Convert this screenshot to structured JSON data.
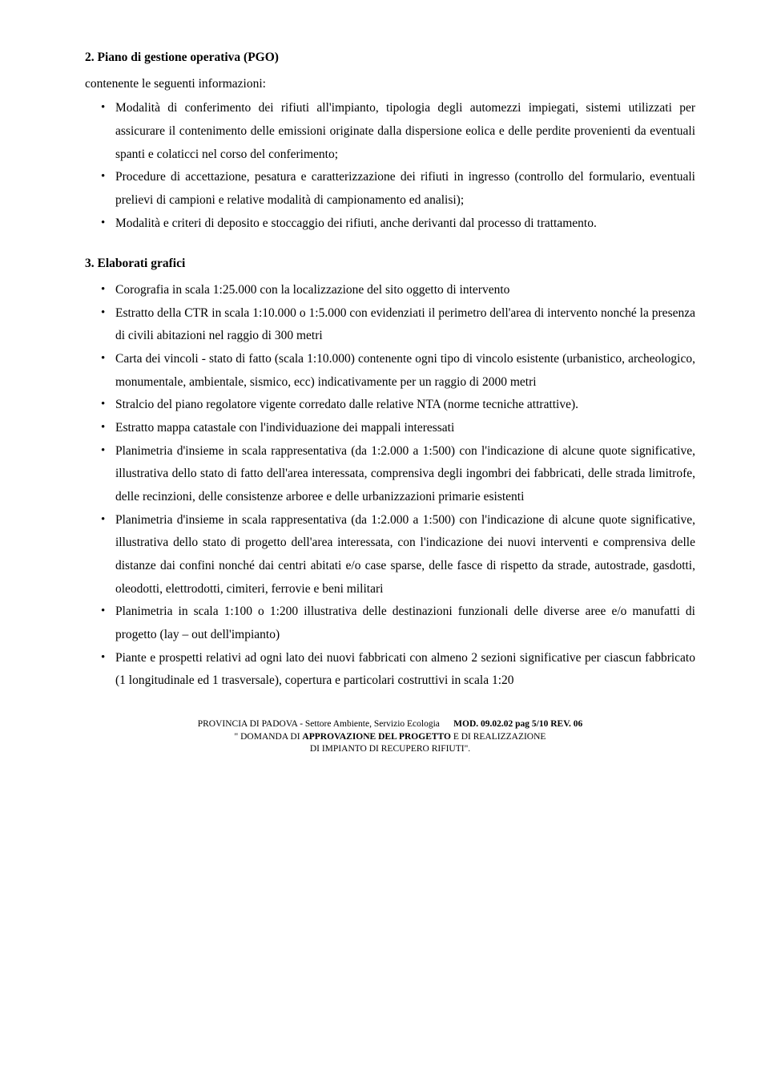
{
  "section2": {
    "title": "2. Piano di gestione operativa (PGO)",
    "intro": "contenente le seguenti informazioni:",
    "items": [
      "Modalità di conferimento dei rifiuti all'impianto, tipologia degli automezzi impiegati, sistemi utilizzati per assicurare il contenimento delle emissioni originate dalla dispersione eolica e delle perdite provenienti da eventuali spanti e colaticci nel corso del conferimento;",
      "Procedure di accettazione, pesatura e caratterizzazione dei rifiuti in ingresso (controllo del formulario, eventuali prelievi di campioni e relative modalità di campionamento ed analisi);",
      "Modalità e criteri di deposito e stoccaggio dei rifiuti, anche derivanti dal processo di trattamento."
    ]
  },
  "section3": {
    "title": "3. Elaborati grafici",
    "items": [
      "Corografia in scala 1:25.000 con la localizzazione del sito oggetto di intervento",
      "Estratto della CTR in scala 1:10.000 o 1:5.000 con evidenziati il perimetro dell'area di intervento nonché la presenza di civili abitazioni nel raggio di 300 metri",
      "Carta dei vincoli - stato di fatto (scala 1:10.000) contenente ogni tipo di vincolo esistente (urbanistico, archeologico, monumentale, ambientale, sismico, ecc) indicativamente per un raggio di 2000 metri",
      "Stralcio del piano regolatore vigente corredato dalle relative NTA (norme tecniche attrattive).",
      "Estratto mappa catastale con l'individuazione dei mappali interessati",
      "Planimetria d'insieme in scala rappresentativa (da 1:2.000 a 1:500) con l'indicazione di alcune quote significative, illustrativa dello stato di fatto dell'area interessata, comprensiva degli ingombri dei fabbricati, delle strada limitrofe, delle recinzioni, delle consistenze arboree e delle urbanizzazioni primarie esistenti",
      "Planimetria d'insieme in scala rappresentativa (da 1:2.000 a 1:500) con l'indicazione di alcune quote significative, illustrativa dello stato di progetto dell'area interessata, con l'indicazione dei nuovi interventi e comprensiva delle distanze dai confini nonché dai centri abitati e/o case sparse, delle fasce di rispetto da strade, autostrade, gasdotti, oleodotti, elettrodotti, cimiteri, ferrovie e beni militari",
      "Planimetria in scala 1:100 o 1:200 illustrativa delle destinazioni funzionali delle diverse aree e/o manufatti di progetto (lay – out dell'impianto)",
      "Piante e prospetti relativi ad ogni lato dei nuovi fabbricati con almeno 2 sezioni significative per ciascun fabbricato (1 longitudinale ed 1 trasversale), copertura e particolari costruttivi in scala 1:20"
    ]
  },
  "footer": {
    "line1_left": "PROVINCIA DI PADOVA - Settore Ambiente, Servizio Ecologia",
    "line1_right": "MOD. 09.02.02  pag 5/10  REV. 06",
    "line2_prefix": "\" DOMANDA DI ",
    "line2_bold": "APPROVAZIONE DEL PROGETTO",
    "line2_suffix": " E DI REALIZZAZIONE",
    "line3": "DI IMPIANTO DI  RECUPERO RIFIUTI\"."
  }
}
